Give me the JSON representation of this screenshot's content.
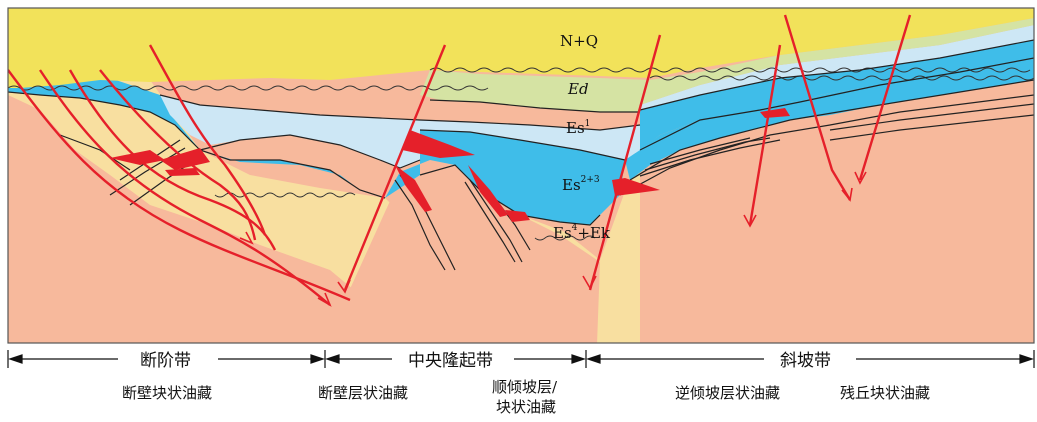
{
  "layers": {
    "nq": "N+Q",
    "ed": "Ed",
    "es1": "Es",
    "es1_sup": "1",
    "es23": "Es",
    "es23_sup": "2+3",
    "es4": "Es",
    "es4_sup": "4",
    "es4_tail": "+Ek"
  },
  "zones": {
    "fault_step": "断阶带",
    "central_uplift": "中央隆起带",
    "slope": "斜坡带"
  },
  "traps": [
    "断壁块状油藏",
    "断壁层状油藏",
    "顺倾坡层/",
    "块状油藏",
    "逆倾坡层状油藏",
    "残丘块状油藏"
  ],
  "colors": {
    "nq": "#f2e25a",
    "ed": "#d5e3a3",
    "es1": "#cde7f5",
    "es23": "#3fbde9",
    "es4": "#f8dfa0",
    "basement": "#f7b99c",
    "oil": "#e5202a",
    "fault": "#e5202a"
  }
}
